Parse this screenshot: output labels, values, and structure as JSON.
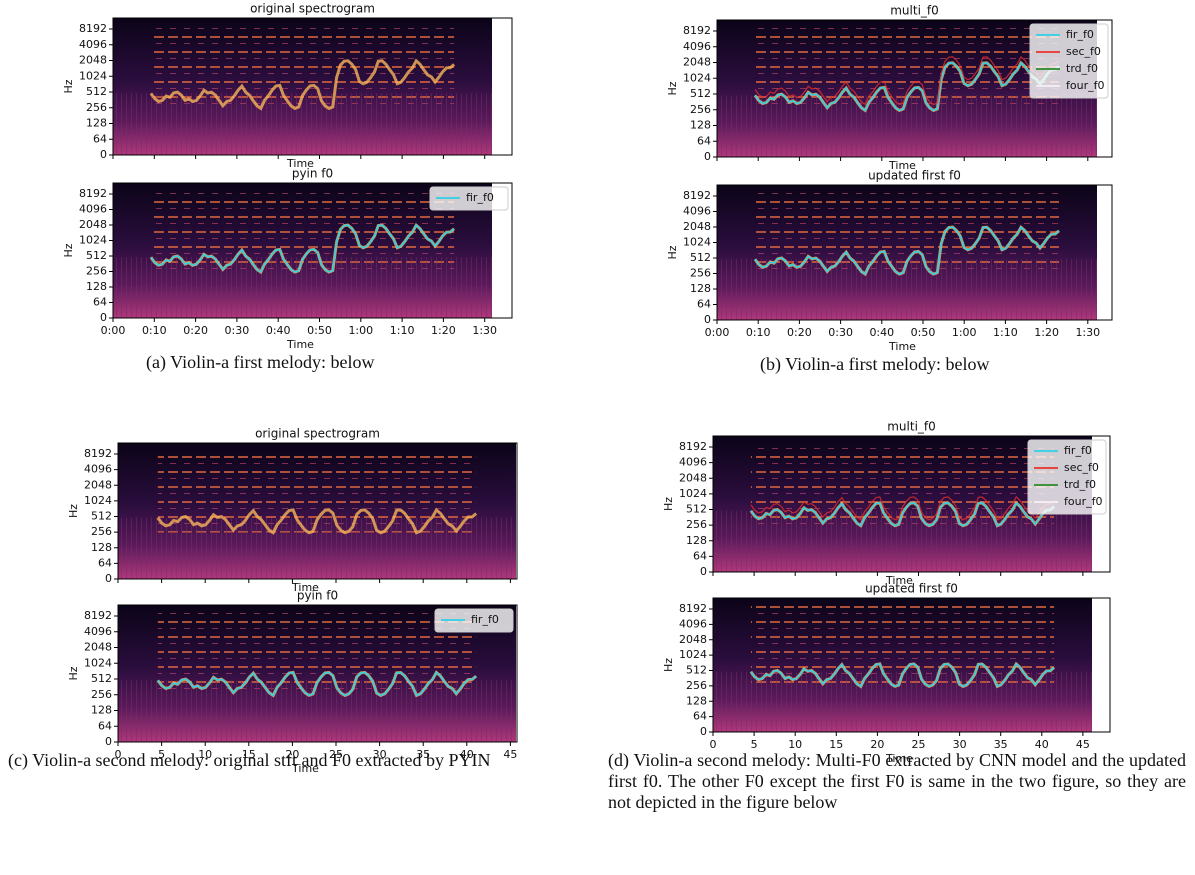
{
  "panels": [
    {
      "caption": "(a) Violin-a first melody: below",
      "plots": [
        {
          "title": "original spectrogram",
          "ylabel": "Hz",
          "xlabel": "Time",
          "yticks": [
            "8192",
            "4096",
            "2048",
            "1024",
            "512",
            "256",
            "128",
            "64",
            "0"
          ]
        },
        {
          "title": "pyin f0",
          "ylabel": "Hz",
          "xlabel": "Time",
          "legend": [
            "fir_f0"
          ],
          "yticks": [
            "8192",
            "4096",
            "2048",
            "1024",
            "512",
            "256",
            "128",
            "64",
            "0"
          ],
          "xticks": [
            "0:00",
            "0:10",
            "0:20",
            "0:30",
            "0:40",
            "0:50",
            "1:00",
            "1:10",
            "1:20",
            "1:30"
          ]
        }
      ]
    },
    {
      "caption": "(b) Violin-a first melody: below",
      "plots": [
        {
          "title": "multi_f0",
          "ylabel": "Hz",
          "xlabel": "Time",
          "legend": [
            "fir_f0",
            "sec_f0",
            "trd_f0",
            "four_f0"
          ],
          "yticks": [
            "8192",
            "4096",
            "2048",
            "1024",
            "512",
            "256",
            "128",
            "64",
            "0"
          ]
        },
        {
          "title": "updated first f0",
          "ylabel": "Hz",
          "xlabel": "Time",
          "yticks": [
            "8192",
            "4096",
            "2048",
            "1024",
            "512",
            "256",
            "128",
            "64",
            "0"
          ],
          "xticks": [
            "0:00",
            "0:10",
            "0:20",
            "0:30",
            "0:40",
            "0:50",
            "1:00",
            "1:10",
            "1:20",
            "1:30"
          ]
        }
      ]
    },
    {
      "caption": "(c) Violin-a second melody: original stft and F0 extracted by PYIN",
      "plots": [
        {
          "title": "original spectrogram",
          "ylabel": "Hz",
          "xlabel": "Time",
          "yticks": [
            "8192",
            "4096",
            "2048",
            "1024",
            "512",
            "256",
            "128",
            "64",
            "0"
          ]
        },
        {
          "title": "pyin f0",
          "ylabel": "Hz",
          "xlabel": "Time",
          "legend": [
            "fir_f0"
          ],
          "yticks": [
            "8192",
            "4096",
            "2048",
            "1024",
            "512",
            "256",
            "128",
            "64",
            "0"
          ],
          "xticks": [
            "0",
            "5",
            "10",
            "15",
            "20",
            "25",
            "30",
            "35",
            "40",
            "45"
          ]
        }
      ]
    },
    {
      "caption": "(d) Violin-a second melody: Multi-F0 extracted by CNN model and the updated first f0. The other F0 except the first F0 is same in the two figure, so they are not depicted in the figure below",
      "plots": [
        {
          "title": "multi_f0",
          "ylabel": "Hz",
          "xlabel": "Time",
          "legend": [
            "fir_f0",
            "sec_f0",
            "trd_f0",
            "four_f0"
          ],
          "yticks": [
            "8192",
            "4096",
            "2048",
            "1024",
            "512",
            "256",
            "128",
            "64",
            "0"
          ]
        },
        {
          "title": "updated first f0",
          "ylabel": "Hz",
          "xlabel": "Time",
          "yticks": [
            "8192",
            "4096",
            "2048",
            "1024",
            "512",
            "256",
            "128",
            "64",
            "0"
          ],
          "xticks": [
            "0",
            "5",
            "10",
            "15",
            "20",
            "25",
            "30",
            "35",
            "40",
            "45"
          ]
        }
      ]
    }
  ]
}
